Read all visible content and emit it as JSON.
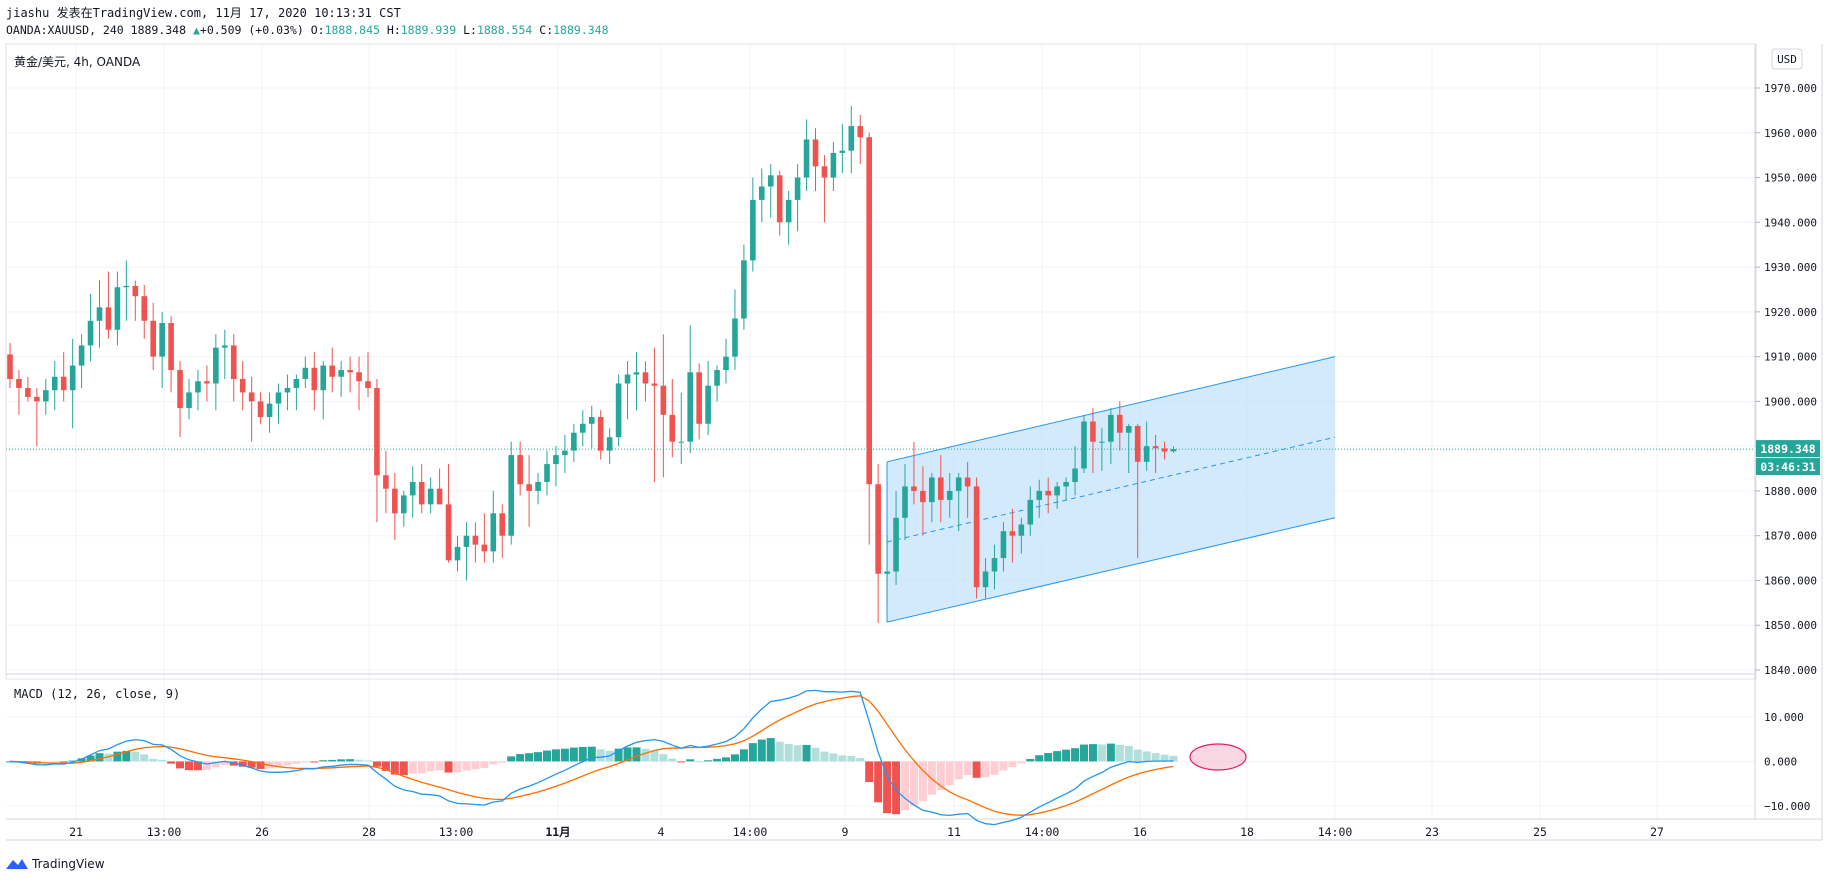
{
  "header": {
    "author": "jiashu",
    "published_on": "发表在TradingView.com, 11月 17, 2020 10:13:31 CST",
    "symbol_line": "OANDA:XAUUSD, 240",
    "last": "1889.348",
    "change": "+0.509 (+0.03%)",
    "o_label": "O:",
    "o_val": "1888.845",
    "h_label": "H:",
    "h_val": "1889.939",
    "l_label": "L:",
    "l_val": "1888.554",
    "c_label": "C:",
    "c_val": "1889.348"
  },
  "colors": {
    "up": "#26a69a",
    "down": "#ef5350",
    "channel_line": "#2196f3",
    "channel_fill": "#bbdefb",
    "macd_line": "#2196f3",
    "signal_line": "#ff6d00",
    "hist_up_strong": "#26a69a",
    "hist_up_weak": "#b2dfdb",
    "hist_down_strong": "#ef5350",
    "hist_down_weak": "#ffcdd2",
    "price_line": "#26a69a"
  },
  "chart_data": [
    {
      "type": "candlestick",
      "title": "黄金/美元, 4h, OANDA",
      "currency_badge": "USD",
      "y_ticks": [
        "1970.000",
        "1960.000",
        "1950.000",
        "1940.000",
        "1930.000",
        "1920.000",
        "1910.000",
        "1900.000",
        "1890.000",
        "1880.000",
        "1870.000",
        "1860.000",
        "1850.000",
        "1840.000"
      ],
      "ylim": [
        1840,
        1970
      ],
      "x_labels": [
        "21",
        "13:00",
        "26",
        "28",
        "13:00",
        "11月",
        "4",
        "14:00",
        "9",
        "11",
        "14:00",
        "16",
        "18",
        "14:00",
        "23",
        "25",
        "27"
      ],
      "last_price_label": "1889.348",
      "countdown_label": "03:46:31",
      "last_price": 1889.348,
      "grid": true,
      "candles": [
        [
          1910.5,
          1913.0,
          1903.0,
          1905.0
        ],
        [
          1905.0,
          1907.0,
          1897.0,
          1903.0
        ],
        [
          1903.0,
          1905.5,
          1900.0,
          1901.0
        ],
        [
          1901.0,
          1903.0,
          1890.0,
          1900.0
        ],
        [
          1900.0,
          1905.0,
          1897.0,
          1902.5
        ],
        [
          1902.5,
          1909.0,
          1898.0,
          1905.5
        ],
        [
          1905.5,
          1911.0,
          1900.0,
          1902.5
        ],
        [
          1902.5,
          1914.0,
          1894.0,
          1908.0
        ],
        [
          1908.0,
          1915.0,
          1903.0,
          1912.5
        ],
        [
          1912.5,
          1924.0,
          1909.0,
          1918.0
        ],
        [
          1918.0,
          1927.0,
          1912.0,
          1921.0
        ],
        [
          1921.0,
          1929.0,
          1914.0,
          1916.0
        ],
        [
          1916.0,
          1929.0,
          1912.5,
          1925.5
        ],
        [
          1925.5,
          1931.5,
          1918.0,
          1925.8
        ],
        [
          1925.8,
          1927.0,
          1918.0,
          1923.5
        ],
        [
          1923.5,
          1926.0,
          1914.0,
          1918.0
        ],
        [
          1918.0,
          1922.0,
          1907.0,
          1910.0
        ],
        [
          1910.0,
          1920.0,
          1903.0,
          1917.5
        ],
        [
          1917.5,
          1919.0,
          1902.0,
          1907.0
        ],
        [
          1907.0,
          1909.0,
          1892.0,
          1898.5
        ],
        [
          1898.5,
          1905.0,
          1896.0,
          1902.0
        ],
        [
          1902.0,
          1907.0,
          1898.0,
          1904.5
        ],
        [
          1904.5,
          1908.0,
          1900.0,
          1904.0
        ],
        [
          1904.0,
          1915.0,
          1898.0,
          1912.0
        ],
        [
          1912.0,
          1916.0,
          1905.0,
          1912.5
        ],
        [
          1912.5,
          1915.0,
          1900.0,
          1905.0
        ],
        [
          1905.0,
          1909.0,
          1898.0,
          1902.0
        ],
        [
          1902.0,
          1905.5,
          1891.0,
          1900.0
        ],
        [
          1900.0,
          1902.0,
          1895.0,
          1896.5
        ],
        [
          1896.5,
          1902.0,
          1893.0,
          1899.5
        ],
        [
          1899.5,
          1904.0,
          1895.0,
          1902.0
        ],
        [
          1902.0,
          1906.0,
          1898.0,
          1903.0
        ],
        [
          1903.0,
          1906.0,
          1898.0,
          1905.0
        ],
        [
          1905.0,
          1910.0,
          1903.0,
          1907.5
        ],
        [
          1907.5,
          1911.0,
          1898.0,
          1902.5
        ],
        [
          1902.5,
          1909.0,
          1896.0,
          1908.0
        ],
        [
          1908.0,
          1912.0,
          1902.0,
          1905.5
        ],
        [
          1905.5,
          1909.0,
          1901.0,
          1907.0
        ],
        [
          1907.0,
          1910.0,
          1902.0,
          1906.5
        ],
        [
          1906.5,
          1910.0,
          1898.0,
          1904.5
        ],
        [
          1904.5,
          1911.0,
          1901.0,
          1903.0
        ],
        [
          1903.0,
          1905.0,
          1873.0,
          1883.5
        ],
        [
          1883.5,
          1889.0,
          1875.0,
          1880.5
        ],
        [
          1880.5,
          1884.0,
          1869.0,
          1875.0
        ],
        [
          1875.0,
          1880.0,
          1872.0,
          1879.0
        ],
        [
          1879.0,
          1885.5,
          1874.0,
          1882.0
        ],
        [
          1882.0,
          1886.0,
          1875.0,
          1877.0
        ],
        [
          1877.0,
          1883.0,
          1875.0,
          1880.5
        ],
        [
          1880.5,
          1885.0,
          1877.0,
          1877.0
        ],
        [
          1877.0,
          1886.0,
          1864.0,
          1864.5
        ],
        [
          1864.5,
          1870.0,
          1862.0,
          1867.5
        ],
        [
          1867.5,
          1873.0,
          1860.0,
          1870.0
        ],
        [
          1870.0,
          1873.0,
          1864.0,
          1868.0
        ],
        [
          1868.0,
          1875.0,
          1864.0,
          1866.5
        ],
        [
          1866.5,
          1880.0,
          1864.0,
          1875.0
        ],
        [
          1875.0,
          1877.0,
          1865.0,
          1870.0
        ],
        [
          1870.0,
          1891.0,
          1868.0,
          1888.0
        ],
        [
          1888.0,
          1891.0,
          1879.0,
          1881.5
        ],
        [
          1881.5,
          1888.0,
          1872.0,
          1880.0
        ],
        [
          1880.0,
          1884.0,
          1877.0,
          1882.0
        ],
        [
          1882.0,
          1889.0,
          1879.0,
          1886.0
        ],
        [
          1886.0,
          1890.0,
          1881.0,
          1888.0
        ],
        [
          1888.0,
          1892.5,
          1884.0,
          1889.0
        ],
        [
          1889.0,
          1895.0,
          1886.5,
          1893.0
        ],
        [
          1893.0,
          1898.0,
          1890.0,
          1895.0
        ],
        [
          1895.0,
          1899.0,
          1889.5,
          1896.5
        ],
        [
          1896.5,
          1898.0,
          1887.0,
          1889.0
        ],
        [
          1889.0,
          1894.0,
          1886.0,
          1892.0
        ],
        [
          1892.0,
          1906.0,
          1890.0,
          1904.0
        ],
        [
          1904.0,
          1909.0,
          1896.0,
          1906.0
        ],
        [
          1906.0,
          1911.0,
          1898.0,
          1906.5
        ],
        [
          1906.5,
          1909.0,
          1900.0,
          1904.0
        ],
        [
          1904.0,
          1912.0,
          1882.0,
          1903.5
        ],
        [
          1903.5,
          1915.0,
          1883.0,
          1897.0
        ],
        [
          1897.0,
          1905.0,
          1887.5,
          1891.0
        ],
        [
          1891.0,
          1902.0,
          1886.0,
          1891.0
        ],
        [
          1891.0,
          1917.0,
          1888.5,
          1906.5
        ],
        [
          1906.5,
          1908.5,
          1891.5,
          1895.0
        ],
        [
          1895.0,
          1909.0,
          1892.5,
          1903.5
        ],
        [
          1903.5,
          1908.0,
          1900.0,
          1907.0
        ],
        [
          1907.0,
          1914.0,
          1904.0,
          1910.0
        ],
        [
          1910.0,
          1925.0,
          1907.0,
          1918.5
        ],
        [
          1918.5,
          1935.0,
          1916.0,
          1931.5
        ],
        [
          1931.5,
          1950.0,
          1929.0,
          1945.0
        ],
        [
          1945.0,
          1952.0,
          1940.0,
          1948.0
        ],
        [
          1948.0,
          1953.0,
          1941.0,
          1950.5
        ],
        [
          1950.5,
          1951.5,
          1937.0,
          1940.0
        ],
        [
          1940.0,
          1947.0,
          1935.0,
          1945.0
        ],
        [
          1945.0,
          1953.0,
          1938.0,
          1950.0
        ],
        [
          1950.0,
          1963.0,
          1947.0,
          1958.5
        ],
        [
          1958.5,
          1961.0,
          1947.0,
          1952.5
        ],
        [
          1952.5,
          1955.0,
          1940.0,
          1950.0
        ],
        [
          1950.0,
          1958.0,
          1947.0,
          1955.5
        ],
        [
          1955.5,
          1962.0,
          1951.0,
          1956.0
        ],
        [
          1956.0,
          1966.0,
          1951.0,
          1961.5
        ],
        [
          1961.5,
          1964.0,
          1953.0,
          1959.0
        ],
        [
          1959.0,
          1960.0,
          1868.0,
          1881.5
        ],
        [
          1881.5,
          1886.0,
          1850.5,
          1861.5
        ],
        [
          1861.5,
          1870.0,
          1855.0,
          1862.0
        ],
        [
          1862.0,
          1880.0,
          1859.0,
          1874.0
        ],
        [
          1874.0,
          1886.0,
          1869.0,
          1881.0
        ],
        [
          1881.0,
          1891.0,
          1877.0,
          1880.0
        ],
        [
          1880.0,
          1885.5,
          1870.0,
          1877.5
        ],
        [
          1877.5,
          1884.0,
          1873.0,
          1883.0
        ],
        [
          1883.0,
          1888.0,
          1873.0,
          1878.0
        ],
        [
          1878.0,
          1884.0,
          1874.0,
          1880.0
        ],
        [
          1880.0,
          1884.0,
          1871.0,
          1883.0
        ],
        [
          1883.0,
          1886.5,
          1874.0,
          1881.0
        ],
        [
          1881.0,
          1883.0,
          1856.0,
          1858.5
        ],
        [
          1858.5,
          1865.0,
          1856.0,
          1862.0
        ],
        [
          1862.0,
          1868.0,
          1858.0,
          1865.0
        ],
        [
          1865.0,
          1873.0,
          1862.0,
          1871.0
        ],
        [
          1871.0,
          1876.0,
          1864.0,
          1870.0
        ],
        [
          1870.0,
          1874.0,
          1866.0,
          1872.5
        ],
        [
          1872.5,
          1881.0,
          1870.0,
          1878.0
        ],
        [
          1878.0,
          1882.5,
          1874.0,
          1880.0
        ],
        [
          1880.0,
          1883.0,
          1875.0,
          1879.0
        ],
        [
          1879.0,
          1882.0,
          1876.0,
          1881.0
        ],
        [
          1881.0,
          1883.0,
          1878.0,
          1882.0
        ],
        [
          1882.0,
          1890.0,
          1879.0,
          1885.0
        ],
        [
          1885.0,
          1897.0,
          1884.0,
          1895.5
        ],
        [
          1895.5,
          1898.5,
          1884.0,
          1891.0
        ],
        [
          1891.0,
          1894.0,
          1884.5,
          1891.0
        ],
        [
          1891.0,
          1898.5,
          1886.0,
          1897.0
        ],
        [
          1897.0,
          1900.0,
          1889.0,
          1893.0
        ],
        [
          1893.0,
          1895.0,
          1884.0,
          1894.5
        ],
        [
          1894.5,
          1895.0,
          1865.0,
          1886.5
        ],
        [
          1886.5,
          1895.5,
          1884.5,
          1890.0
        ],
        [
          1890.0,
          1892.5,
          1884.0,
          1889.5
        ],
        [
          1889.5,
          1891.0,
          1887.0,
          1888.8
        ],
        [
          1888.845,
          1889.939,
          1888.554,
          1889.348
        ]
      ]
    },
    {
      "type": "macd",
      "title": "MACD (12, 26, close, 9)",
      "y_ticks": [
        "10.000",
        "0.000",
        "−10.000"
      ],
      "ylim": [
        -12,
        16
      ]
    }
  ]
}
